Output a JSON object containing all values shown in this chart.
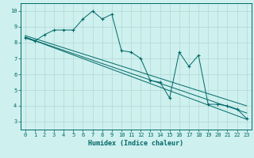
{
  "xlabel": "Humidex (Indice chaleur)",
  "bg_color": "#cef0ee",
  "grid_color": "#b0d8d4",
  "line_color": "#006868",
  "spine_color": "#006868",
  "xlim": [
    -0.5,
    23.5
  ],
  "ylim": [
    2.5,
    10.5
  ],
  "xticks": [
    0,
    1,
    2,
    3,
    4,
    5,
    6,
    7,
    8,
    9,
    10,
    11,
    12,
    13,
    14,
    15,
    16,
    17,
    18,
    19,
    20,
    21,
    22,
    23
  ],
  "yticks": [
    3,
    4,
    5,
    6,
    7,
    8,
    9,
    10
  ],
  "main_x": [
    0,
    1,
    2,
    3,
    4,
    5,
    6,
    7,
    8,
    9,
    10,
    11,
    12,
    13,
    14,
    15,
    16,
    17,
    18,
    19,
    20,
    21,
    22,
    23
  ],
  "main_y": [
    8.3,
    8.1,
    8.5,
    8.8,
    8.8,
    8.8,
    9.5,
    10.0,
    9.5,
    9.8,
    7.5,
    7.4,
    7.0,
    5.6,
    5.5,
    4.5,
    7.4,
    6.5,
    7.2,
    4.1,
    4.1,
    4.0,
    3.8,
    3.2
  ],
  "line2_x": [
    0,
    23
  ],
  "line2_y": [
    8.35,
    3.15
  ],
  "line3_x": [
    0,
    23
  ],
  "line3_y": [
    8.35,
    3.55
  ],
  "line4_x": [
    0,
    23
  ],
  "line4_y": [
    8.45,
    4.0
  ],
  "tick_fontsize": 5,
  "xlabel_fontsize": 6,
  "linewidth": 0.7,
  "marker_size": 3.0
}
